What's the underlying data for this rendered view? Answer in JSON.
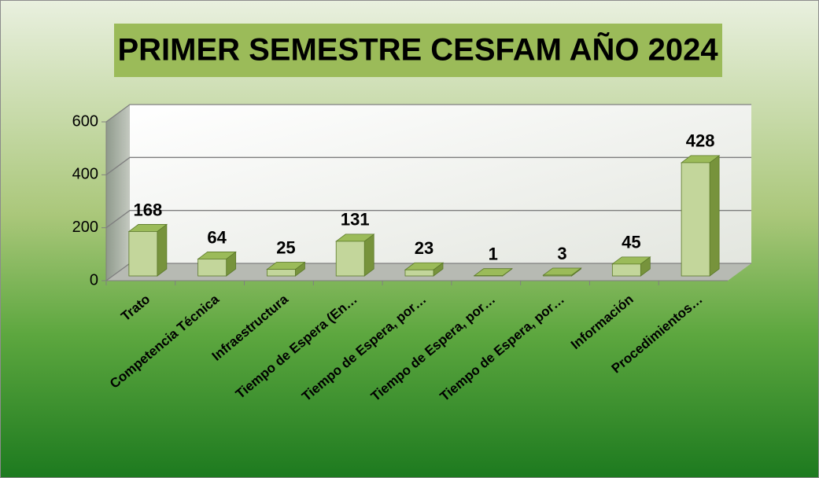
{
  "chart_data": {
    "type": "bar3d",
    "title": "PRIMER SEMESTRE CESFAM AÑO 2024",
    "categories": [
      "Trato",
      "Competencia Técnica",
      "Infraestructura",
      "Tiempo de Espera (En…",
      "Tiempo de Espera, por…",
      "Tiempo de Espera, por…",
      "Tiempo de Espera, por…",
      "Información",
      "Procedimientos…"
    ],
    "values": [
      168,
      64,
      25,
      131,
      23,
      1,
      3,
      45,
      428
    ],
    "color": "#c3d69b",
    "ylim": [
      0,
      600
    ],
    "yticks": [
      0,
      200,
      400,
      600
    ],
    "grid": true
  }
}
